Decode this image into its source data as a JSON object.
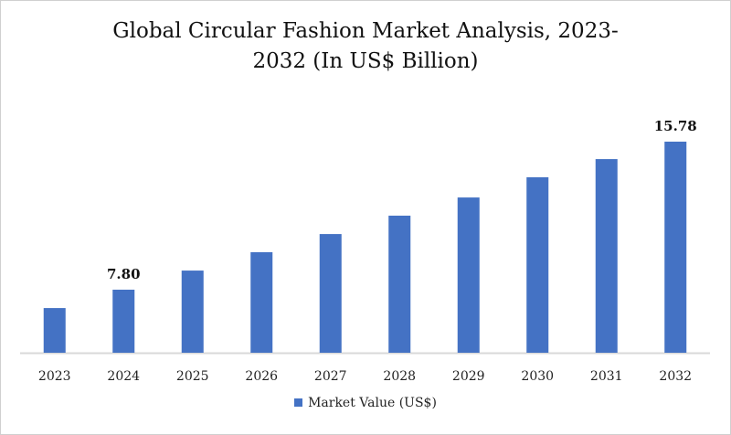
{
  "chart_data": {
    "type": "bar",
    "title_line1": "Global Circular Fashion Market Analysis, 2023-",
    "title_line2": "2032 (In US$ Billion)",
    "categories": [
      "2023",
      "2024",
      "2025",
      "2026",
      "2027",
      "2028",
      "2029",
      "2030",
      "2031",
      "2032"
    ],
    "series": [
      {
        "name": "Market Value (US$)",
        "color": "#4472C4",
        "values": [
          6.81,
          7.8,
          8.83,
          9.82,
          10.8,
          11.79,
          12.77,
          13.86,
          14.84,
          15.78
        ]
      }
    ],
    "data_labels": {
      "1": "7.80",
      "9": "15.78"
    },
    "xlabel": "",
    "ylabel": "",
    "ylim": [
      4.4,
      16.5
    ],
    "grid": false,
    "legend": "bottom"
  }
}
